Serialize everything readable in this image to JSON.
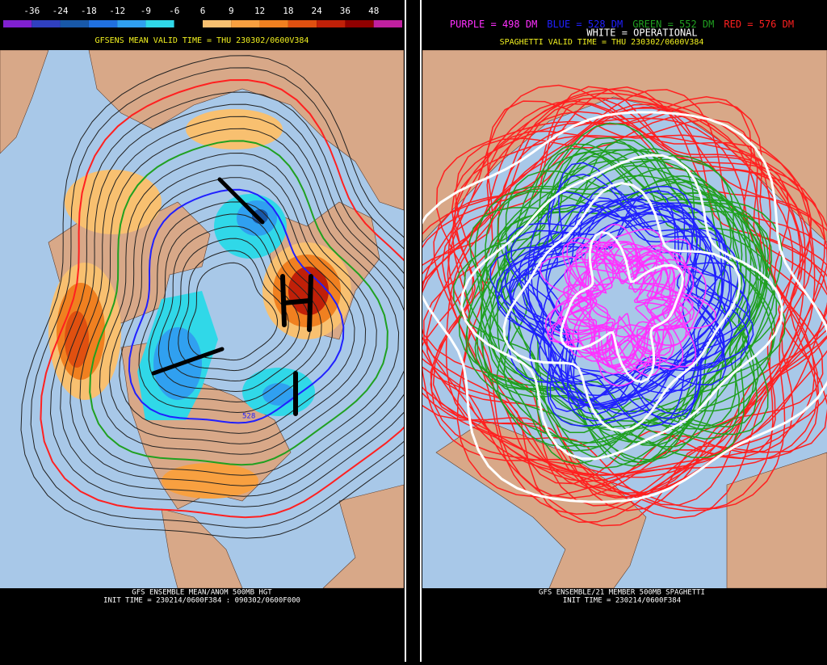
{
  "left_panel": {
    "colorbar": {
      "ticks": [
        -36,
        -24,
        -18,
        -12,
        -9,
        -6,
        6,
        9,
        12,
        18,
        24,
        36,
        48
      ],
      "colors": [
        "#8020d0",
        "#3040c0",
        "#1858a8",
        "#2070e0",
        "#30a0f0",
        "#30d8e8",
        "#000000",
        "#f8c070",
        "#f8a040",
        "#f08020",
        "#e05010",
        "#c02008",
        "#900000",
        "#c020a0"
      ]
    },
    "valid_title": "GFSENS MEAN VALID TIME = THU 230302/0600V384",
    "contour_label": "528",
    "footer": [
      "GFS ENSEMBLE MEAN/ANOM 500MB HGT",
      "INIT TIME = 230214/0600F384 : 090302/0600F000"
    ]
  },
  "right_panel": {
    "legend": [
      {
        "label": "PURPLE = 498 DM",
        "color": "#ff30ff"
      },
      {
        "label": "BLUE = 528 DM",
        "color": "#2020ff"
      },
      {
        "label": "GREEN = 552 DM",
        "color": "#20a020"
      },
      {
        "label": "RED = 576 DM",
        "color": "#ff2020"
      }
    ],
    "operational": "WHITE = OPERATIONAL",
    "valid_title": "SPAGHETTI VALID TIME = THU 230302/0600V384",
    "footer": [
      "GFS ENSEMBLE/21 MEMBER 500MB SPAGHETTI",
      "INIT TIME = 230214/0600F384"
    ]
  }
}
